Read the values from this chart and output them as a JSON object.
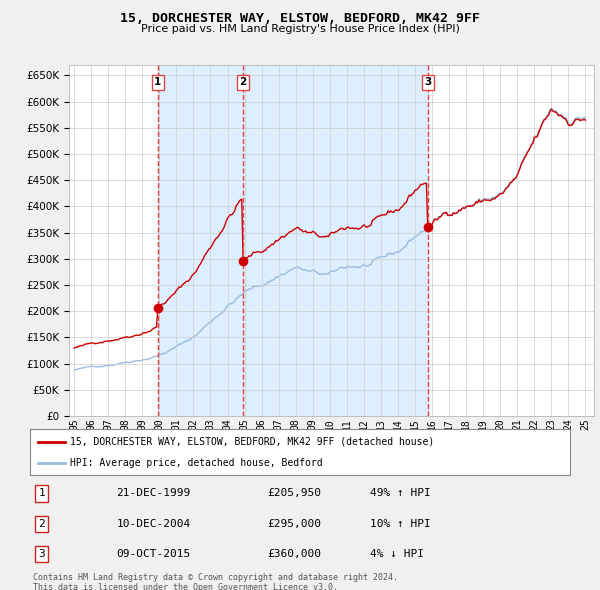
{
  "title": "15, DORCHESTER WAY, ELSTOW, BEDFORD, MK42 9FF",
  "subtitle": "Price paid vs. HM Land Registry's House Price Index (HPI)",
  "ylim": [
    0,
    670000
  ],
  "yticks": [
    0,
    50000,
    100000,
    150000,
    200000,
    250000,
    300000,
    350000,
    400000,
    450000,
    500000,
    550000,
    600000,
    650000
  ],
  "background_color": "#f0f0f0",
  "plot_bg_color": "#ffffff",
  "plot_shade_color": "#ddeeff",
  "red_line_color": "#cc0000",
  "blue_line_color": "#99bbdd",
  "vline_color": "#dd4444",
  "transactions": [
    {
      "year": 1999,
      "month": 12,
      "value": 205950,
      "label": "1",
      "date_str": "21-DEC-1999",
      "price": "£205,950",
      "pct": "49% ↑ HPI"
    },
    {
      "year": 2004,
      "month": 12,
      "value": 295000,
      "label": "2",
      "date_str": "10-DEC-2004",
      "price": "£295,000",
      "pct": "10% ↑ HPI"
    },
    {
      "year": 2015,
      "month": 10,
      "value": 360000,
      "label": "3",
      "date_str": "09-OCT-2015",
      "price": "£360,000",
      "pct": "4% ↓ HPI"
    }
  ],
  "legend_label_red": "15, DORCHESTER WAY, ELSTOW, BEDFORD, MK42 9FF (detached house)",
  "legend_label_blue": "HPI: Average price, detached house, Bedford",
  "footer1": "Contains HM Land Registry data © Crown copyright and database right 2024.",
  "footer2": "This data is licensed under the Open Government Licence v3.0."
}
